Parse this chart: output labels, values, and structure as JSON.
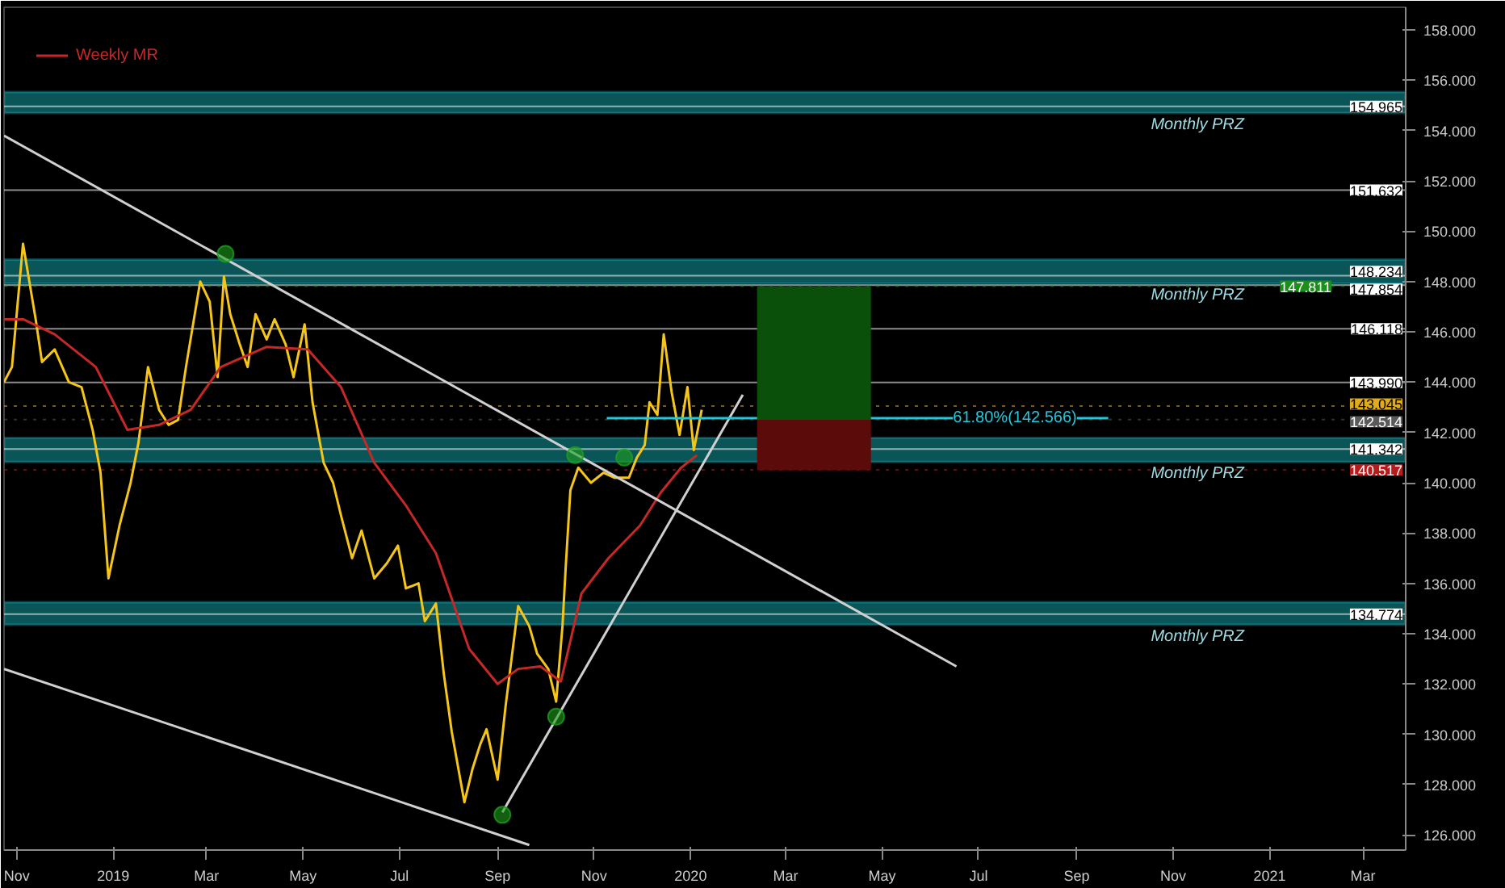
{
  "chart_data": {
    "type": "line",
    "xlim": [
      "2018-10-24",
      "2021-03-28"
    ],
    "ylim": [
      125.4,
      158.9
    ],
    "xticks": [
      {
        "value": "2018-11-01",
        "label": "Nov"
      },
      {
        "value": "2019-01-01",
        "label": "2019"
      },
      {
        "value": "2019-03-01",
        "label": "Mar"
      },
      {
        "value": "2019-05-01",
        "label": "May"
      },
      {
        "value": "2019-07-01",
        "label": "Jul"
      },
      {
        "value": "2019-09-01",
        "label": "Sep"
      },
      {
        "value": "2019-11-01",
        "label": "Nov"
      },
      {
        "value": "2020-01-01",
        "label": "2020"
      },
      {
        "value": "2020-03-01",
        "label": "Mar"
      },
      {
        "value": "2020-05-01",
        "label": "May"
      },
      {
        "value": "2020-07-01",
        "label": "Jul"
      },
      {
        "value": "2020-09-01",
        "label": "Sep"
      },
      {
        "value": "2020-11-01",
        "label": "Nov"
      },
      {
        "value": "2021-01-01",
        "label": "2021"
      },
      {
        "value": "2021-03-01",
        "label": "Mar"
      }
    ],
    "yticks": [
      {
        "value": 126,
        "label": "126.000"
      },
      {
        "value": 128,
        "label": "128.000"
      },
      {
        "value": 130,
        "label": "130.000"
      },
      {
        "value": 132,
        "label": "132.000"
      },
      {
        "value": 134,
        "label": "134.000"
      },
      {
        "value": 136,
        "label": "136.000"
      },
      {
        "value": 138,
        "label": "138.000"
      },
      {
        "value": 140,
        "label": "140.000"
      },
      {
        "value": 142,
        "label": "142.000"
      },
      {
        "value": 144,
        "label": "144.000"
      },
      {
        "value": 146,
        "label": "146.000"
      },
      {
        "value": 148,
        "label": "148.000"
      },
      {
        "value": 150,
        "label": "150.000"
      },
      {
        "value": 152,
        "label": "152.000"
      },
      {
        "value": 154,
        "label": "154.000"
      },
      {
        "value": 156,
        "label": "156.000"
      },
      {
        "value": 158,
        "label": "158.000"
      }
    ],
    "legend": "top left",
    "bands": [
      {
        "axis": "y",
        "from": 154.7,
        "to": 155.53,
        "label": "Monthly PRZ",
        "color": "#0b5e62"
      },
      {
        "axis": "y",
        "from": 147.92,
        "to": 148.87,
        "label": "Monthly PRZ",
        "color": "#0b5e62"
      },
      {
        "axis": "y",
        "from": 140.83,
        "to": 141.78,
        "label": "Monthly PRZ",
        "color": "#0b5e62"
      },
      {
        "axis": "y",
        "from": 134.36,
        "to": 135.25,
        "label": "Monthly PRZ",
        "color": "#0b5e62"
      }
    ],
    "ref_lines": [
      {
        "axis": "y",
        "value": 154.965,
        "label": "154.965",
        "color": "#ffffff"
      },
      {
        "axis": "y",
        "value": 151.632,
        "label": "151.632",
        "color": "#ffffff"
      },
      {
        "axis": "y",
        "value": 148.234,
        "label": "148.234",
        "color": "#ffffff"
      },
      {
        "axis": "y",
        "value": 147.854,
        "label": "147.854",
        "color": "#ffffff"
      },
      {
        "axis": "y",
        "value": 147.811,
        "label": "147.811",
        "color": "#1a8f1a",
        "line_style": "dotted"
      },
      {
        "axis": "y",
        "value": 146.118,
        "label": "146.118",
        "color": "#ffffff"
      },
      {
        "axis": "y",
        "value": 143.99,
        "label": "143.990",
        "color": "#ffffff"
      },
      {
        "axis": "y",
        "value": 143.045,
        "label": "143.045",
        "color": "#e0ac1c",
        "line_style": "dotted"
      },
      {
        "axis": "y",
        "value": 142.514,
        "label": "142.514",
        "color": "#5a5a5a",
        "line_style": "dotted"
      },
      {
        "axis": "y",
        "value": 141.342,
        "label": "141.342",
        "color": "#ffffff"
      },
      {
        "axis": "y",
        "value": 140.517,
        "label": "140.517",
        "color": "#b71c1c",
        "line_style": "dotted"
      },
      {
        "axis": "y",
        "value": 134.774,
        "label": "134.774",
        "color": "#ffffff"
      }
    ],
    "annotations": [
      {
        "text": "61.80%(142.566)",
        "x": "2020-07-24",
        "y": 142.566
      }
    ],
    "series": [
      {
        "type": "line",
        "color": "#f5c518",
        "x": [
          "2018-10-24",
          "2018-10-29",
          "2018-11-05",
          "2018-11-13",
          "2018-11-17",
          "2018-11-25",
          "2018-12-04",
          "2018-12-12",
          "2018-12-19",
          "2018-12-24",
          "2018-12-29",
          "2019-01-05",
          "2019-01-12",
          "2019-01-17",
          "2019-01-23",
          "2019-01-30",
          "2019-02-05",
          "2019-02-11",
          "2019-02-16",
          "2019-02-25",
          "2019-03-03",
          "2019-03-08",
          "2019-03-12",
          "2019-03-16",
          "2019-03-22",
          "2019-03-27",
          "2019-04-01",
          "2019-04-08",
          "2019-04-13",
          "2019-04-20",
          "2019-04-25",
          "2019-05-02",
          "2019-05-07",
          "2019-05-14",
          "2019-05-20",
          "2019-05-25",
          "2019-06-01",
          "2019-06-07",
          "2019-06-15",
          "2019-06-23",
          "2019-06-30",
          "2019-07-05",
          "2019-07-13",
          "2019-07-17",
          "2019-07-24",
          "2019-07-29",
          "2019-08-03",
          "2019-08-11",
          "2019-08-16",
          "2019-08-21",
          "2019-08-25",
          "2019-09-01",
          "2019-09-06",
          "2019-09-14",
          "2019-09-21",
          "2019-09-26",
          "2019-10-03",
          "2019-10-08",
          "2019-10-12",
          "2019-10-14",
          "2019-10-17",
          "2019-10-22",
          "2019-10-30",
          "2019-11-07",
          "2019-11-14",
          "2019-11-23",
          "2019-11-28",
          "2019-12-03",
          "2019-12-06",
          "2019-12-11",
          "2019-12-15",
          "2019-12-20",
          "2019-12-25",
          "2019-12-30",
          "2020-01-03",
          "2020-01-08"
        ],
        "values": [
          144.0,
          144.6,
          149.5,
          146.5,
          144.8,
          145.3,
          144.0,
          143.8,
          142.1,
          140.4,
          136.2,
          138.3,
          140.0,
          141.6,
          144.6,
          142.9,
          142.3,
          142.5,
          144.6,
          148.0,
          147.2,
          144.2,
          148.2,
          146.7,
          145.5,
          144.6,
          146.7,
          145.7,
          146.5,
          145.5,
          144.2,
          146.3,
          143.2,
          140.8,
          140.0,
          138.7,
          137.0,
          138.1,
          136.2,
          136.8,
          137.5,
          135.8,
          136.0,
          134.5,
          135.2,
          132.4,
          130.1,
          127.3,
          128.6,
          129.6,
          130.2,
          128.2,
          131.1,
          135.1,
          134.3,
          133.2,
          132.6,
          131.3,
          134.3,
          136.6,
          139.7,
          140.6,
          140.0,
          140.4,
          140.2,
          140.2,
          141.0,
          141.5,
          143.2,
          142.7,
          145.9,
          143.6,
          141.9,
          143.8,
          141.3,
          142.9
        ]
      },
      {
        "type": "line",
        "name": "Weekly MR",
        "color": "#c62828",
        "x": [
          "2018-10-24",
          "2018-11-05",
          "2018-11-25",
          "2018-12-21",
          "2019-01-10",
          "2019-01-30",
          "2019-02-19",
          "2019-03-10",
          "2019-04-08",
          "2019-05-04",
          "2019-05-25",
          "2019-06-15",
          "2019-07-05",
          "2019-07-24",
          "2019-08-14",
          "2019-09-01",
          "2019-09-14",
          "2019-09-28",
          "2019-10-11",
          "2019-10-24",
          "2019-11-10",
          "2019-11-30",
          "2019-12-13",
          "2019-12-26",
          "2020-01-05"
        ],
        "values": [
          146.5,
          146.5,
          145.9,
          144.6,
          142.1,
          142.3,
          142.9,
          144.6,
          145.4,
          145.3,
          143.8,
          140.8,
          139.1,
          137.2,
          133.4,
          132.0,
          132.6,
          132.7,
          132.1,
          135.6,
          137.0,
          138.3,
          139.6,
          140.6,
          141.1
        ]
      },
      {
        "type": "line",
        "color": "#d0d0d0",
        "x": [
          "2018-10-24",
          "2020-06-17"
        ],
        "values": [
          153.8,
          132.7
        ]
      },
      {
        "type": "line",
        "color": "#d0d0d0",
        "x": [
          "2018-10-24",
          "2019-09-21"
        ],
        "values": [
          132.6,
          125.6
        ]
      },
      {
        "type": "line",
        "color": "#d0d0d0",
        "x": [
          "2019-09-04",
          "2020-02-03"
        ],
        "values": [
          126.9,
          143.5
        ]
      },
      {
        "type": "line",
        "color": "#26c6da",
        "x": [
          "2019-11-09",
          "2020-09-21"
        ],
        "values": [
          142.566,
          142.566
        ]
      },
      {
        "type": "bar",
        "color": "#0a4f0a",
        "x": [
          "2020-03-19"
        ],
        "base": [
          142.5
        ],
        "values": [
          5.3
        ]
      },
      {
        "type": "bar",
        "color": "#5c0b0b",
        "x": [
          "2020-03-19"
        ],
        "base": [
          140.5
        ],
        "values": [
          2.0
        ]
      },
      {
        "type": "scatter",
        "color": "#1e9e1e",
        "marker": "circle",
        "x": [
          "2019-03-13",
          "2019-10-20",
          "2019-11-20",
          "2019-10-08",
          "2019-09-04"
        ],
        "values": [
          149.1,
          141.1,
          141.0,
          130.7,
          126.8
        ]
      }
    ]
  }
}
